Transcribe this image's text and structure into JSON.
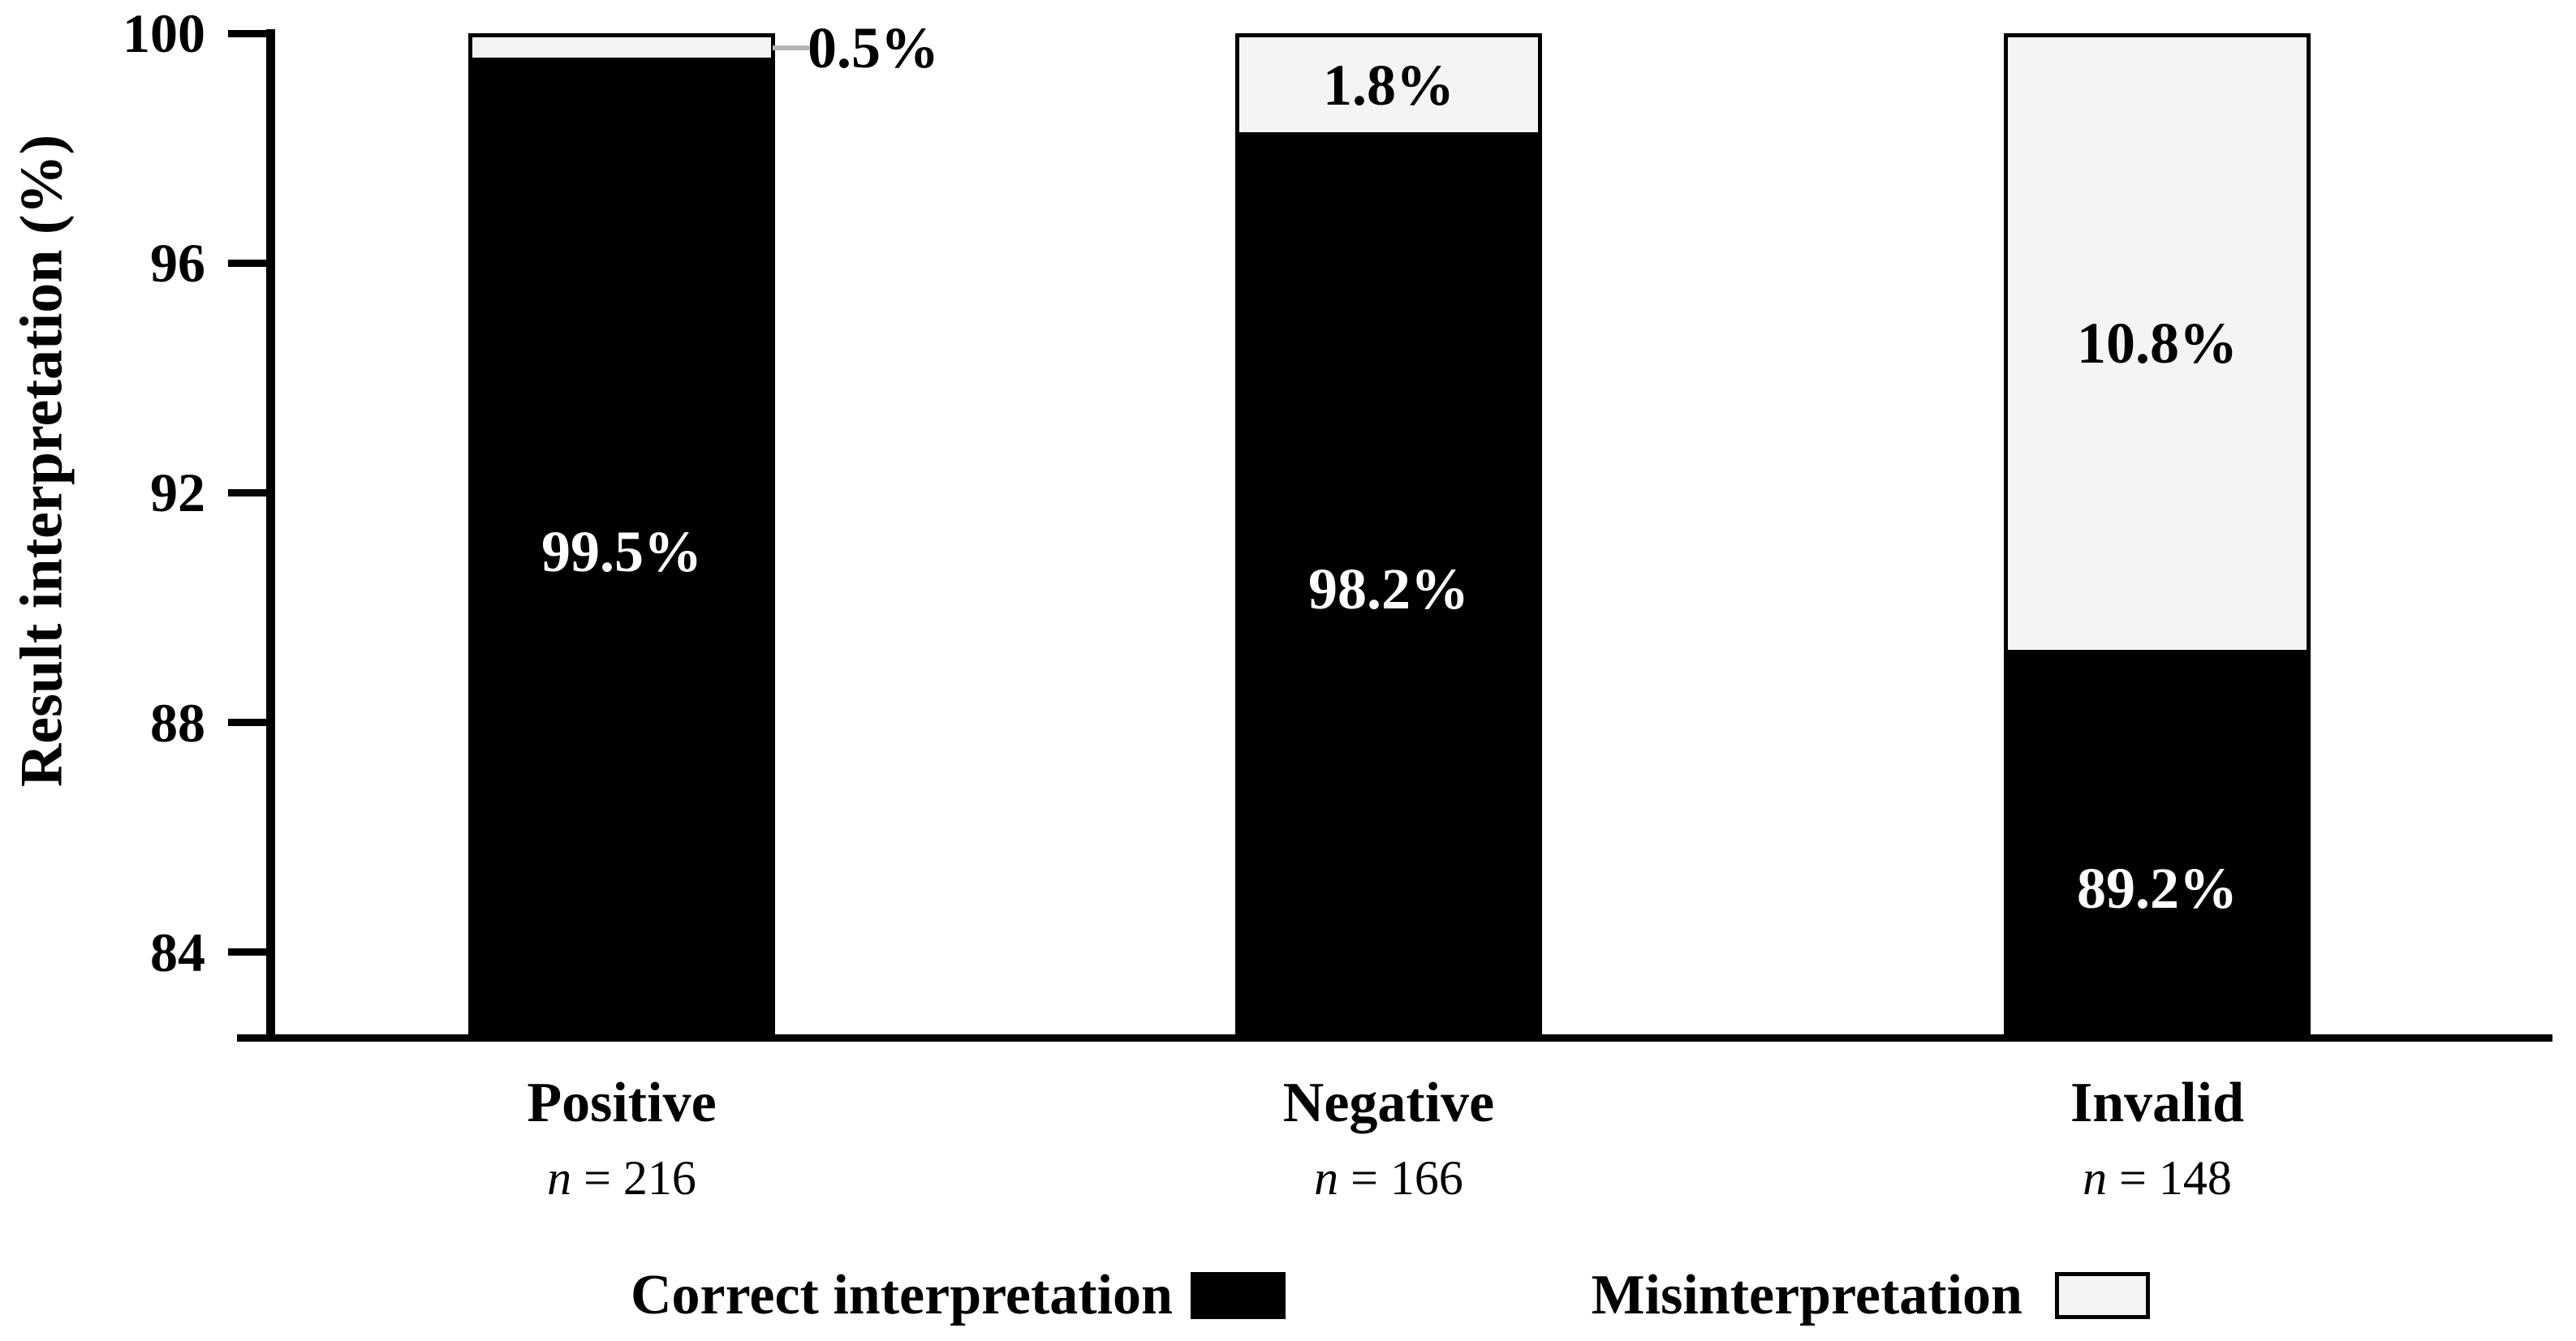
{
  "page": {
    "background": "#ffffff"
  },
  "chart_data": {
    "type": "bar",
    "stacked": true,
    "title": "",
    "xlabel": "",
    "ylabel": "Result interpretation (%)",
    "ylim": [
      82.5,
      100
    ],
    "yticks": [
      100,
      96,
      92,
      88,
      84
    ],
    "grid": false,
    "legend_position": "bottom",
    "categories": [
      {
        "label": "Positive",
        "n_italic": "n",
        "n_rest": " = 216"
      },
      {
        "label": "Negative",
        "n_italic": "n",
        "n_rest": " = 166"
      },
      {
        "label": "Invalid",
        "n_italic": "n",
        "n_rest": " = 148"
      }
    ],
    "series": [
      {
        "name": "Correct interpretation",
        "color": "#000000",
        "text_color": "#ffffff",
        "values": [
          99.5,
          98.2,
          89.2
        ],
        "labels": [
          "99.5%",
          "98.2%",
          "89.2%"
        ]
      },
      {
        "name": "Misinterpretation",
        "color": "#f4f4f4",
        "text_color": "#000000",
        "values": [
          0.5,
          1.8,
          10.8
        ],
        "labels": [
          "0.5%",
          "1.8%",
          "10.8%"
        ]
      }
    ],
    "callout": {
      "category_index": 0,
      "line_color": "#b5b5b5"
    },
    "legend": [
      {
        "label": "Correct interpretation",
        "swatch_color": "#000000",
        "swatch_border": "#000000"
      },
      {
        "label": "Misinterpretation",
        "swatch_color": "#f4f4f4",
        "swatch_border": "#000000"
      }
    ]
  }
}
